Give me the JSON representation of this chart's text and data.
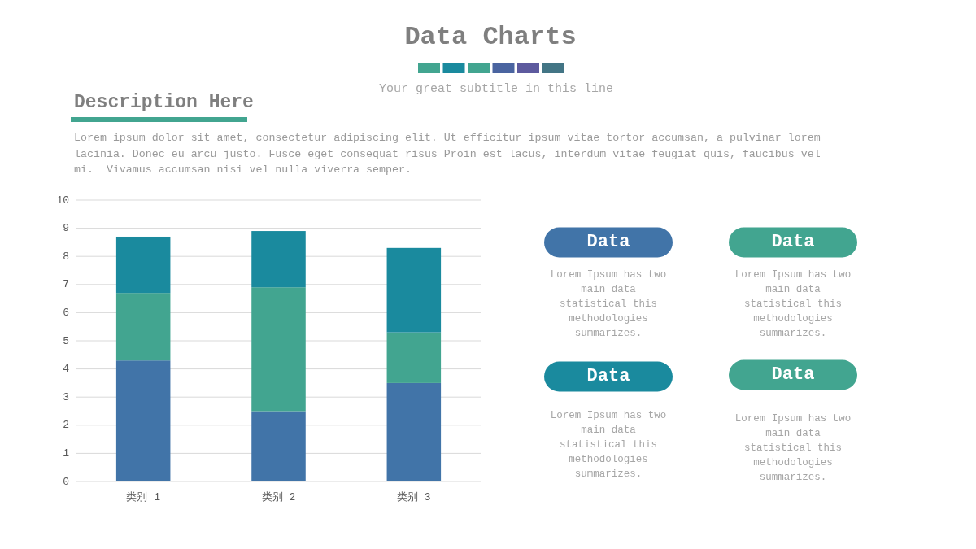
{
  "chart_data": [
    {
      "type": "bar",
      "title": "Data Charts",
      "subtitle": "Your great subtitle in this line",
      "annotations": [
        "Description Here",
        "Lorem ipsum dolor sit amet, consectetur adipiscing elit. Ut efficitur ipsum vitae tortor accumsan, a pulvinar lorem lacinia. Donec eu arcu justo. Fusce eget consequat risus Proin est lacus, interdum vitae feugiat quis, faucibus vel mi.  Vivamus accumsan nisi vel nulla viverra semper."
      ],
      "categories": [
        "类别 1",
        "类别 2",
        "类别 3"
      ],
      "stacked": true,
      "series": [
        {
          "color": "#4174a8",
          "values": [
            4.3,
            2.5,
            3.5
          ]
        },
        {
          "color": "#42a590",
          "values": [
            2.4,
            4.4,
            1.8
          ]
        },
        {
          "color": "#1a8a9e",
          "values": [
            2.0,
            2.0,
            3.0
          ]
        }
      ],
      "ylim": [
        0,
        10
      ],
      "yticks": [
        0,
        1,
        2,
        3,
        4,
        5,
        6,
        7,
        8,
        9,
        10
      ],
      "grid": "y"
    },
    {
      "type": "other",
      "annotations": [
        "Data",
        "Lorem Ipsum has two main data statistical this methodologies summarizes.",
        "Data",
        "Lorem Ipsum has two main data statistical this methodologies summarizes.",
        "Data",
        "Lorem Ipsum has two main data statistical this methodologies summarizes.",
        "Data",
        "Lorem Ipsum has two main data statistical this methodologies summarizes."
      ]
    }
  ]
}
